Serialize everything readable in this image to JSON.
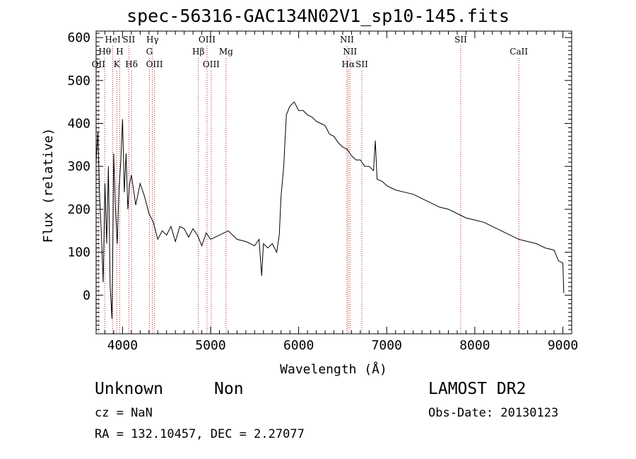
{
  "header": {
    "title": "spec-56316-GAC134N02V1_sp10-145.fits",
    "class": "Unknown",
    "subclass": "Non",
    "survey": "LAMOST DR2",
    "cz": "cz = NaN",
    "obs_date": "Obs-Date: 20130123",
    "ra_dec": "RA = 132.10457, DEC =    2.27077"
  },
  "chart_data": {
    "type": "line",
    "title": "spec-56316-GAC134N02V1_sp10-145.fits",
    "xlabel": "Wavelength (Å)",
    "ylabel": "Flux (relative)",
    "xlim": [
      3700,
      9100
    ],
    "ylim": [
      -90,
      615
    ],
    "xticks": [
      4000,
      5000,
      6000,
      7000,
      8000,
      9000
    ],
    "yticks": [
      0,
      100,
      200,
      300,
      400,
      500,
      600
    ],
    "line_color": "#000000",
    "marker_line_color": "#b22222",
    "grid": false,
    "series": [
      {
        "points": [
          [
            3700,
            310
          ],
          [
            3720,
            380
          ],
          [
            3740,
            230
          ],
          [
            3760,
            140
          ],
          [
            3780,
            30
          ],
          [
            3800,
            260
          ],
          [
            3820,
            120
          ],
          [
            3840,
            300
          ],
          [
            3860,
            20
          ],
          [
            3880,
            -55
          ],
          [
            3890,
            120
          ],
          [
            3900,
            330
          ],
          [
            3920,
            200
          ],
          [
            3940,
            120
          ],
          [
            3960,
            250
          ],
          [
            3980,
            310
          ],
          [
            4000,
            410
          ],
          [
            4020,
            240
          ],
          [
            4040,
            330
          ],
          [
            4060,
            200
          ],
          [
            4080,
            260
          ],
          [
            4100,
            280
          ],
          [
            4150,
            210
          ],
          [
            4200,
            260
          ],
          [
            4250,
            230
          ],
          [
            4300,
            190
          ],
          [
            4350,
            170
          ],
          [
            4400,
            130
          ],
          [
            4450,
            150
          ],
          [
            4500,
            140
          ],
          [
            4550,
            160
          ],
          [
            4600,
            125
          ],
          [
            4650,
            160
          ],
          [
            4700,
            155
          ],
          [
            4750,
            135
          ],
          [
            4800,
            155
          ],
          [
            4850,
            140
          ],
          [
            4900,
            115
          ],
          [
            4950,
            145
          ],
          [
            5000,
            130
          ],
          [
            5100,
            140
          ],
          [
            5200,
            150
          ],
          [
            5300,
            130
          ],
          [
            5400,
            125
          ],
          [
            5500,
            115
          ],
          [
            5550,
            130
          ],
          [
            5580,
            45
          ],
          [
            5600,
            120
          ],
          [
            5650,
            110
          ],
          [
            5700,
            120
          ],
          [
            5750,
            100
          ],
          [
            5780,
            140
          ],
          [
            5800,
            230
          ],
          [
            5830,
            300
          ],
          [
            5860,
            420
          ],
          [
            5900,
            440
          ],
          [
            5950,
            450
          ],
          [
            6000,
            430
          ],
          [
            6050,
            430
          ],
          [
            6100,
            420
          ],
          [
            6150,
            415
          ],
          [
            6200,
            405
          ],
          [
            6250,
            400
          ],
          [
            6300,
            395
          ],
          [
            6350,
            375
          ],
          [
            6400,
            370
          ],
          [
            6450,
            355
          ],
          [
            6500,
            345
          ],
          [
            6550,
            340
          ],
          [
            6600,
            325
          ],
          [
            6650,
            315
          ],
          [
            6700,
            315
          ],
          [
            6750,
            300
          ],
          [
            6800,
            300
          ],
          [
            6850,
            290
          ],
          [
            6870,
            360
          ],
          [
            6890,
            270
          ],
          [
            6950,
            265
          ],
          [
            7000,
            255
          ],
          [
            7100,
            245
          ],
          [
            7200,
            240
          ],
          [
            7300,
            235
          ],
          [
            7400,
            225
          ],
          [
            7500,
            215
          ],
          [
            7600,
            205
          ],
          [
            7700,
            200
          ],
          [
            7800,
            190
          ],
          [
            7900,
            180
          ],
          [
            8000,
            175
          ],
          [
            8100,
            170
          ],
          [
            8200,
            160
          ],
          [
            8300,
            150
          ],
          [
            8400,
            140
          ],
          [
            8500,
            130
          ],
          [
            8600,
            125
          ],
          [
            8700,
            120
          ],
          [
            8800,
            110
          ],
          [
            8900,
            105
          ],
          [
            8950,
            80
          ],
          [
            9000,
            75
          ],
          [
            9010,
            5
          ]
        ]
      }
    ],
    "line_markers": [
      {
        "label": "OII",
        "x": 3727,
        "row": 3
      },
      {
        "label": "Hθ",
        "x": 3798,
        "row": 2
      },
      {
        "label": "HeI",
        "x": 3889,
        "row": 1
      },
      {
        "label": "K",
        "x": 3934,
        "row": 3
      },
      {
        "label": "H",
        "x": 3968,
        "row": 2
      },
      {
        "label": "SII",
        "x": 4072,
        "row": 1
      },
      {
        "label": "Hδ",
        "x": 4102,
        "row": 3
      },
      {
        "label": "Hγ",
        "x": 4340,
        "row": 1
      },
      {
        "label": "G",
        "x": 4305,
        "row": 2
      },
      {
        "label": "OIII",
        "x": 4363,
        "row": 3
      },
      {
        "label": "Hβ",
        "x": 4861,
        "row": 2
      },
      {
        "label": "OIII",
        "x": 4959,
        "row": 1
      },
      {
        "label": "OIII",
        "x": 5007,
        "row": 3
      },
      {
        "label": "Mg",
        "x": 5175,
        "row": 2
      },
      {
        "label": "NII",
        "x": 6548,
        "row": 1
      },
      {
        "label": "NII",
        "x": 6583,
        "row": 2
      },
      {
        "label": "Hα",
        "x": 6563,
        "row": 3
      },
      {
        "label": "SII",
        "x": 6717,
        "row": 3
      },
      {
        "label": "SII",
        "x": 7840,
        "row": 1
      },
      {
        "label": "CaII",
        "x": 8500,
        "row": 2
      }
    ]
  }
}
